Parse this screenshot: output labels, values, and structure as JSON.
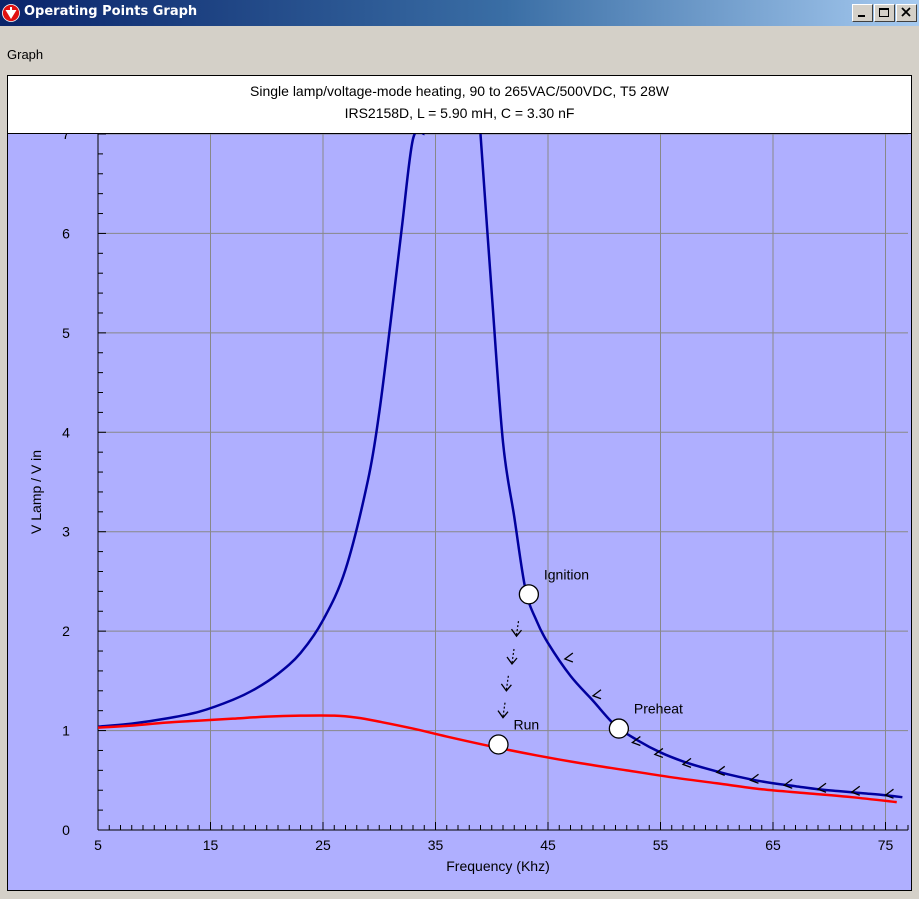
{
  "window": {
    "title": "Operating Points Graph",
    "controls": {
      "minimize": "minimize",
      "maximize": "maximize",
      "close": "close"
    }
  },
  "menu": {
    "items": [
      "Graph"
    ]
  },
  "chart_header": {
    "line1": "Single lamp/voltage-mode heating,  90 to 265VAC/500VDC,  T5 28W",
    "line2": "IRS2158D,  L = 5.90 mH,  C = 3.30 nF"
  },
  "colors": {
    "plot_background": "#afafff",
    "grid": "#888888",
    "curve_unloaded": "#00009e",
    "curve_loaded": "#ff0000"
  },
  "chart_data": {
    "type": "line",
    "xlabel": "Frequency (Khz)",
    "ylabel": "V Lamp / V in",
    "xlim": [
      5,
      77
    ],
    "ylim": [
      0,
      7
    ],
    "x_ticks": [
      "5",
      "15",
      "25",
      "35",
      "45",
      "55",
      "65",
      "75"
    ],
    "y_ticks": [
      "0",
      "1",
      "2",
      "3",
      "4",
      "5",
      "6",
      "7"
    ],
    "grid": true,
    "series": [
      {
        "color": "#00009e",
        "x": [
          5,
          8,
          11,
          14,
          17,
          19,
          21,
          23,
          25,
          27,
          29,
          30,
          31,
          32,
          33,
          34
        ],
        "y": [
          1.04,
          1.07,
          1.12,
          1.19,
          1.31,
          1.42,
          1.57,
          1.78,
          2.11,
          2.62,
          3.52,
          4.2,
          5.1,
          6.05,
          6.95,
          7.0
        ]
      },
      {
        "color": "#00009e",
        "x": [
          39,
          40,
          41,
          42,
          43,
          44,
          45,
          47,
          49,
          51,
          53,
          55,
          57,
          59,
          61,
          63,
          65,
          67,
          69,
          71,
          73,
          75,
          76.5
        ],
        "y": [
          7.0,
          5.4,
          3.9,
          3.15,
          2.42,
          2.1,
          1.88,
          1.55,
          1.3,
          1.05,
          0.9,
          0.78,
          0.69,
          0.62,
          0.56,
          0.51,
          0.47,
          0.44,
          0.41,
          0.39,
          0.37,
          0.35,
          0.33
        ]
      },
      {
        "color": "#ff0000",
        "x": [
          5,
          8,
          11,
          14,
          17,
          20,
          23,
          26,
          28,
          30,
          33,
          36,
          40,
          44,
          48,
          52,
          56,
          60,
          64,
          68,
          72,
          76
        ],
        "y": [
          1.03,
          1.05,
          1.08,
          1.1,
          1.12,
          1.14,
          1.15,
          1.15,
          1.13,
          1.09,
          1.02,
          0.94,
          0.84,
          0.75,
          0.67,
          0.6,
          0.53,
          0.47,
          0.41,
          0.37,
          0.33,
          0.28
        ]
      }
    ],
    "operating_points": [
      {
        "label": "Ignition",
        "x": 43.3,
        "y": 2.37
      },
      {
        "label": "Preheat",
        "x": 51.3,
        "y": 1.02
      },
      {
        "label": "Run",
        "x": 40.6,
        "y": 0.86
      }
    ],
    "sweep_arrows_on_curve": [
      [
        75,
        0.35
      ],
      [
        72,
        0.38
      ],
      [
        69,
        0.41
      ],
      [
        66,
        0.45
      ],
      [
        63,
        0.5
      ],
      [
        60,
        0.58
      ],
      [
        57,
        0.66
      ],
      [
        54.5,
        0.76
      ],
      [
        52.5,
        0.88
      ],
      [
        49,
        1.35
      ],
      [
        46.5,
        1.72
      ]
    ],
    "transition_arrows": [
      [
        42.2,
        2.0
      ],
      [
        41.8,
        1.72
      ],
      [
        41.3,
        1.45
      ],
      [
        41.0,
        1.18
      ]
    ]
  }
}
